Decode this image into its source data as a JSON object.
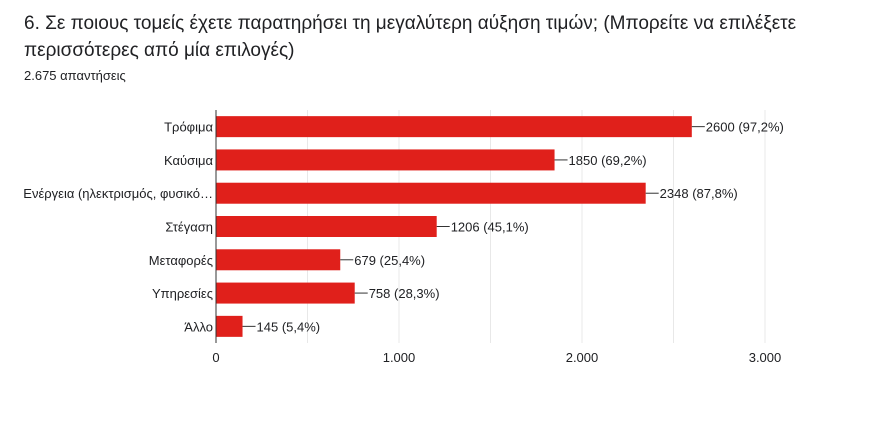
{
  "question": {
    "title": "6. Σε ποιους τομείς έχετε παρατηρήσει τη μεγαλύτερη αύξηση τιμών; (Μπορείτε να επιλέξετε περισσότερες από μία επιλογές)",
    "response_count": "2.675 απαντήσεις"
  },
  "colors": {
    "bar": "#e0201b",
    "grid": "#e8e8e8",
    "axis": "#333333",
    "text": "#202124"
  },
  "chart_data": {
    "type": "bar",
    "orientation": "horizontal",
    "categories": [
      "Τρόφιμα",
      "Καύσιμα",
      "Ενέργεια (ηλεκτρισμός, φυσικό…",
      "Στέγαση",
      "Μεταφορές",
      "Υπηρεσίες",
      "Άλλο"
    ],
    "values": [
      2600,
      1850,
      2348,
      1206,
      679,
      758,
      145
    ],
    "data_labels": [
      "2600 (97,2%)",
      "1850 (69,2%)",
      "2348 (87,8%)",
      "1206 (45,1%)",
      "679 (25,4%)",
      "758 (28,3%)",
      "145 (5,4%)"
    ],
    "xlim": [
      0,
      3000
    ],
    "x_ticks": [
      0,
      1000,
      2000,
      3000
    ],
    "x_tick_labels": [
      "0",
      "1.000",
      "2.000",
      "3.000"
    ],
    "grid": true,
    "legend": "none"
  }
}
